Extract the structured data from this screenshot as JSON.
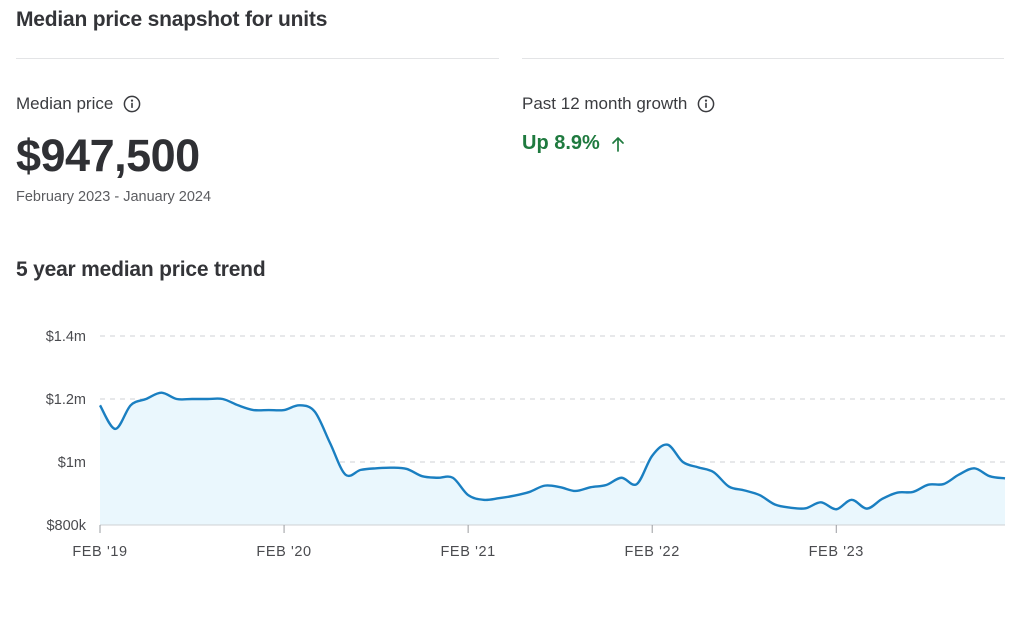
{
  "header": {
    "title": "Median price snapshot for units"
  },
  "stats": {
    "median": {
      "label": "Median price",
      "value": "$947,500",
      "range": "February 2023 - January 2024"
    },
    "growth": {
      "label": "Past 12 month growth",
      "value": "Up 8.9%",
      "color": "#1f7a3f"
    }
  },
  "icons": {
    "info": "info-icon",
    "growth_arrow": "arrow-up-icon"
  },
  "chart_data": {
    "type": "area",
    "title": "5 year median price trend",
    "xlabel": "",
    "ylabel": "",
    "ylim": [
      800000,
      1400000
    ],
    "yticks": [
      {
        "value": 800000,
        "label": "$800k"
      },
      {
        "value": 1000000,
        "label": "$1m"
      },
      {
        "value": 1200000,
        "label": "$1.2m"
      },
      {
        "value": 1400000,
        "label": "$1.4m"
      }
    ],
    "xticks": [
      "FEB '19",
      "FEB '20",
      "FEB '21",
      "FEB '22",
      "FEB '23"
    ],
    "grid": "horizontal-dashed",
    "line_color": "#1a7fc1",
    "fill_color": "#eaf7fd",
    "series": [
      {
        "values": [
          1180000,
          1105000,
          1180000,
          1200000,
          1220000,
          1200000,
          1200000,
          1200000,
          1200000,
          1180000,
          1165000,
          1165000,
          1165000,
          1180000,
          1160000,
          1060000,
          960000,
          975000,
          980000,
          982000,
          978000,
          955000,
          950000,
          950000,
          895000,
          880000,
          885000,
          893000,
          905000,
          925000,
          920000,
          908000,
          920000,
          927000,
          950000,
          930000,
          1020000,
          1055000,
          1000000,
          983000,
          968000,
          922000,
          910000,
          895000,
          865000,
          855000,
          853000,
          872000,
          850000,
          880000,
          852000,
          883000,
          903000,
          905000,
          928000,
          930000,
          960000,
          980000,
          955000,
          948000
        ]
      }
    ]
  }
}
